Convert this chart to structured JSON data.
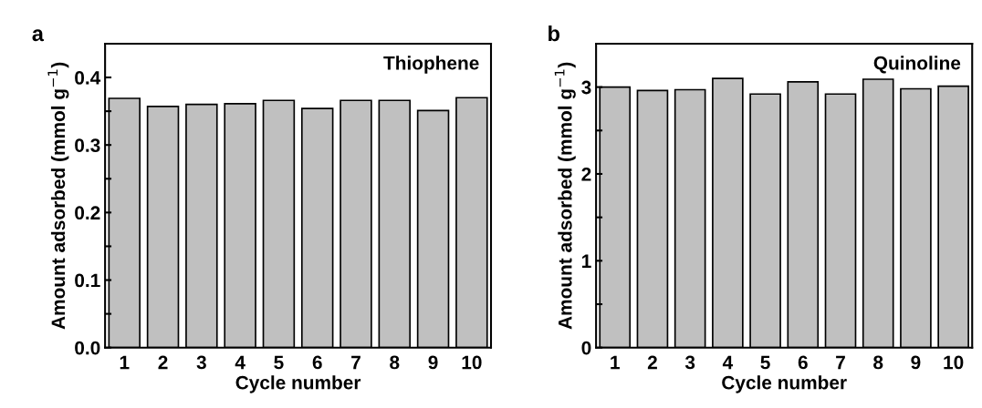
{
  "chart_data": [
    {
      "type": "bar",
      "title": "a",
      "xlabel": "Cycle number",
      "ylabel": "Amount adsorbed (mmol g$^{−1}$)",
      "annotations": [
        "Thiophene"
      ],
      "categories": [
        "1",
        "2",
        "3",
        "4",
        "5",
        "6",
        "7",
        "8",
        "9",
        "10"
      ],
      "values": [
        0.369,
        0.357,
        0.36,
        0.361,
        0.366,
        0.354,
        0.366,
        0.366,
        0.351,
        0.37
      ],
      "color": "#c0c0c0",
      "ylim": [
        0,
        0.45
      ],
      "yticks": [
        {
          "value": 0,
          "label": "0.0"
        },
        {
          "value": 0.05,
          "label": null
        },
        0.1,
        {
          "value": 0.15,
          "label": null
        },
        0.2,
        {
          "value": 0.25,
          "label": null
        },
        0.3,
        {
          "value": 0.35,
          "label": null
        },
        0.4
      ],
      "grid": false,
      "legend": false
    },
    {
      "type": "bar",
      "title": "b",
      "xlabel": "Cycle number",
      "ylabel": "Amount adsorbed (mmol g$^{−1}$)",
      "annotations": [
        "Quinoline"
      ],
      "categories": [
        "1",
        "2",
        "3",
        "4",
        "5",
        "6",
        "7",
        "8",
        "9",
        "10"
      ],
      "values": [
        3.0,
        2.96,
        2.97,
        3.1,
        2.92,
        3.06,
        2.92,
        3.09,
        2.98,
        3.01
      ],
      "color": "#c0c0c0",
      "ylim": [
        0,
        3.5
      ],
      "yticks": [
        0,
        {
          "value": 0.5,
          "label": null
        },
        1,
        {
          "value": 1.5,
          "label": null
        },
        2,
        {
          "value": 2.5,
          "label": null
        },
        3
      ],
      "grid": false,
      "legend": false
    }
  ]
}
